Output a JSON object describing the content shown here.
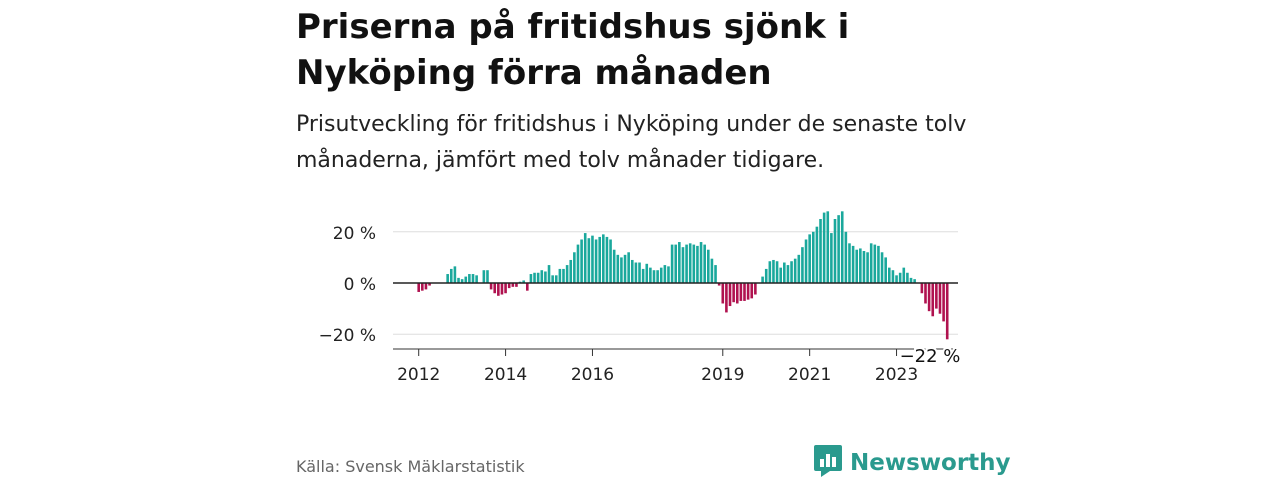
{
  "header": {
    "title": "Priserna på fritidshus sjönk i Nyköping förra månaden",
    "subtitle": "Prisutveckling för fritidshus i Nyköping under de senaste tolv månaderna, jämfört med tolv månader tidigare."
  },
  "footer": {
    "source": "Källa: Svensk Mäklarstatistik",
    "brand": "Newsworthy",
    "brand_icon": "bar-chart-speech-bubble-icon"
  },
  "colors": {
    "positive": "#1aa89c",
    "negative": "#b0124f",
    "brand": "#2a9a8e"
  },
  "chart_data": {
    "type": "bar",
    "title": "Priserna på fritidshus sjönk i Nyköping förra månaden",
    "subtitle": "Prisutveckling för fritidshus i Nyköping under de senaste tolv månaderna, jämfört med tolv månader tidigare.",
    "unit": "%",
    "frequency": "monthly",
    "start": "2012-01",
    "ylim": [
      -25,
      30
    ],
    "yticks": [
      20,
      0,
      -20
    ],
    "ytick_labels": [
      "20 %",
      "0 %",
      "−20 %"
    ],
    "xtick_labels": [
      "2012",
      "2014",
      "2016",
      "2019",
      "2021",
      "2023"
    ],
    "xtick_positions": [
      "2012-01",
      "2014-01",
      "2016-01",
      "2019-01",
      "2021-01",
      "2023-01"
    ],
    "grid": true,
    "annotation": "−22 %",
    "values": [
      -3.5,
      -3,
      -2.5,
      -1,
      0,
      0,
      0,
      0,
      3.5,
      5.5,
      6.5,
      2,
      1.5,
      2.5,
      3.5,
      3.5,
      3,
      0,
      5,
      5,
      -2.5,
      -4,
      -5,
      -4.5,
      -4,
      -2,
      -1.5,
      -1.5,
      0.5,
      1,
      -3,
      3.5,
      4,
      4,
      5,
      4.5,
      7,
      3,
      3,
      5.5,
      5.5,
      7,
      9,
      12,
      15,
      17,
      19.5,
      17.5,
      18.5,
      17,
      18,
      19,
      18,
      17,
      13,
      11,
      10,
      11,
      12,
      9,
      8,
      8,
      5.5,
      7.5,
      6,
      5,
      5,
      6,
      7,
      6.5,
      15,
      15,
      16,
      14,
      15,
      15.5,
      15,
      14.5,
      16,
      15,
      13,
      9.5,
      7,
      -1,
      -8,
      -11.5,
      -9,
      -7.5,
      -8,
      -7,
      -7,
      -6.5,
      -6,
      -4.5,
      0,
      2.5,
      5.5,
      8.5,
      9,
      8.5,
      6,
      8,
      7,
      8.5,
      9.5,
      11,
      14,
      17,
      19,
      20,
      22,
      25,
      27.5,
      28,
      19.5,
      25,
      26.5,
      28,
      20,
      15.5,
      14.5,
      13,
      13.5,
      12.5,
      12,
      15.5,
      15,
      14.5,
      12,
      10,
      6,
      5,
      3,
      4,
      6,
      4,
      2,
      1.5,
      0,
      -4,
      -8,
      -11,
      -13,
      -10,
      -12,
      -15,
      -22
    ]
  }
}
